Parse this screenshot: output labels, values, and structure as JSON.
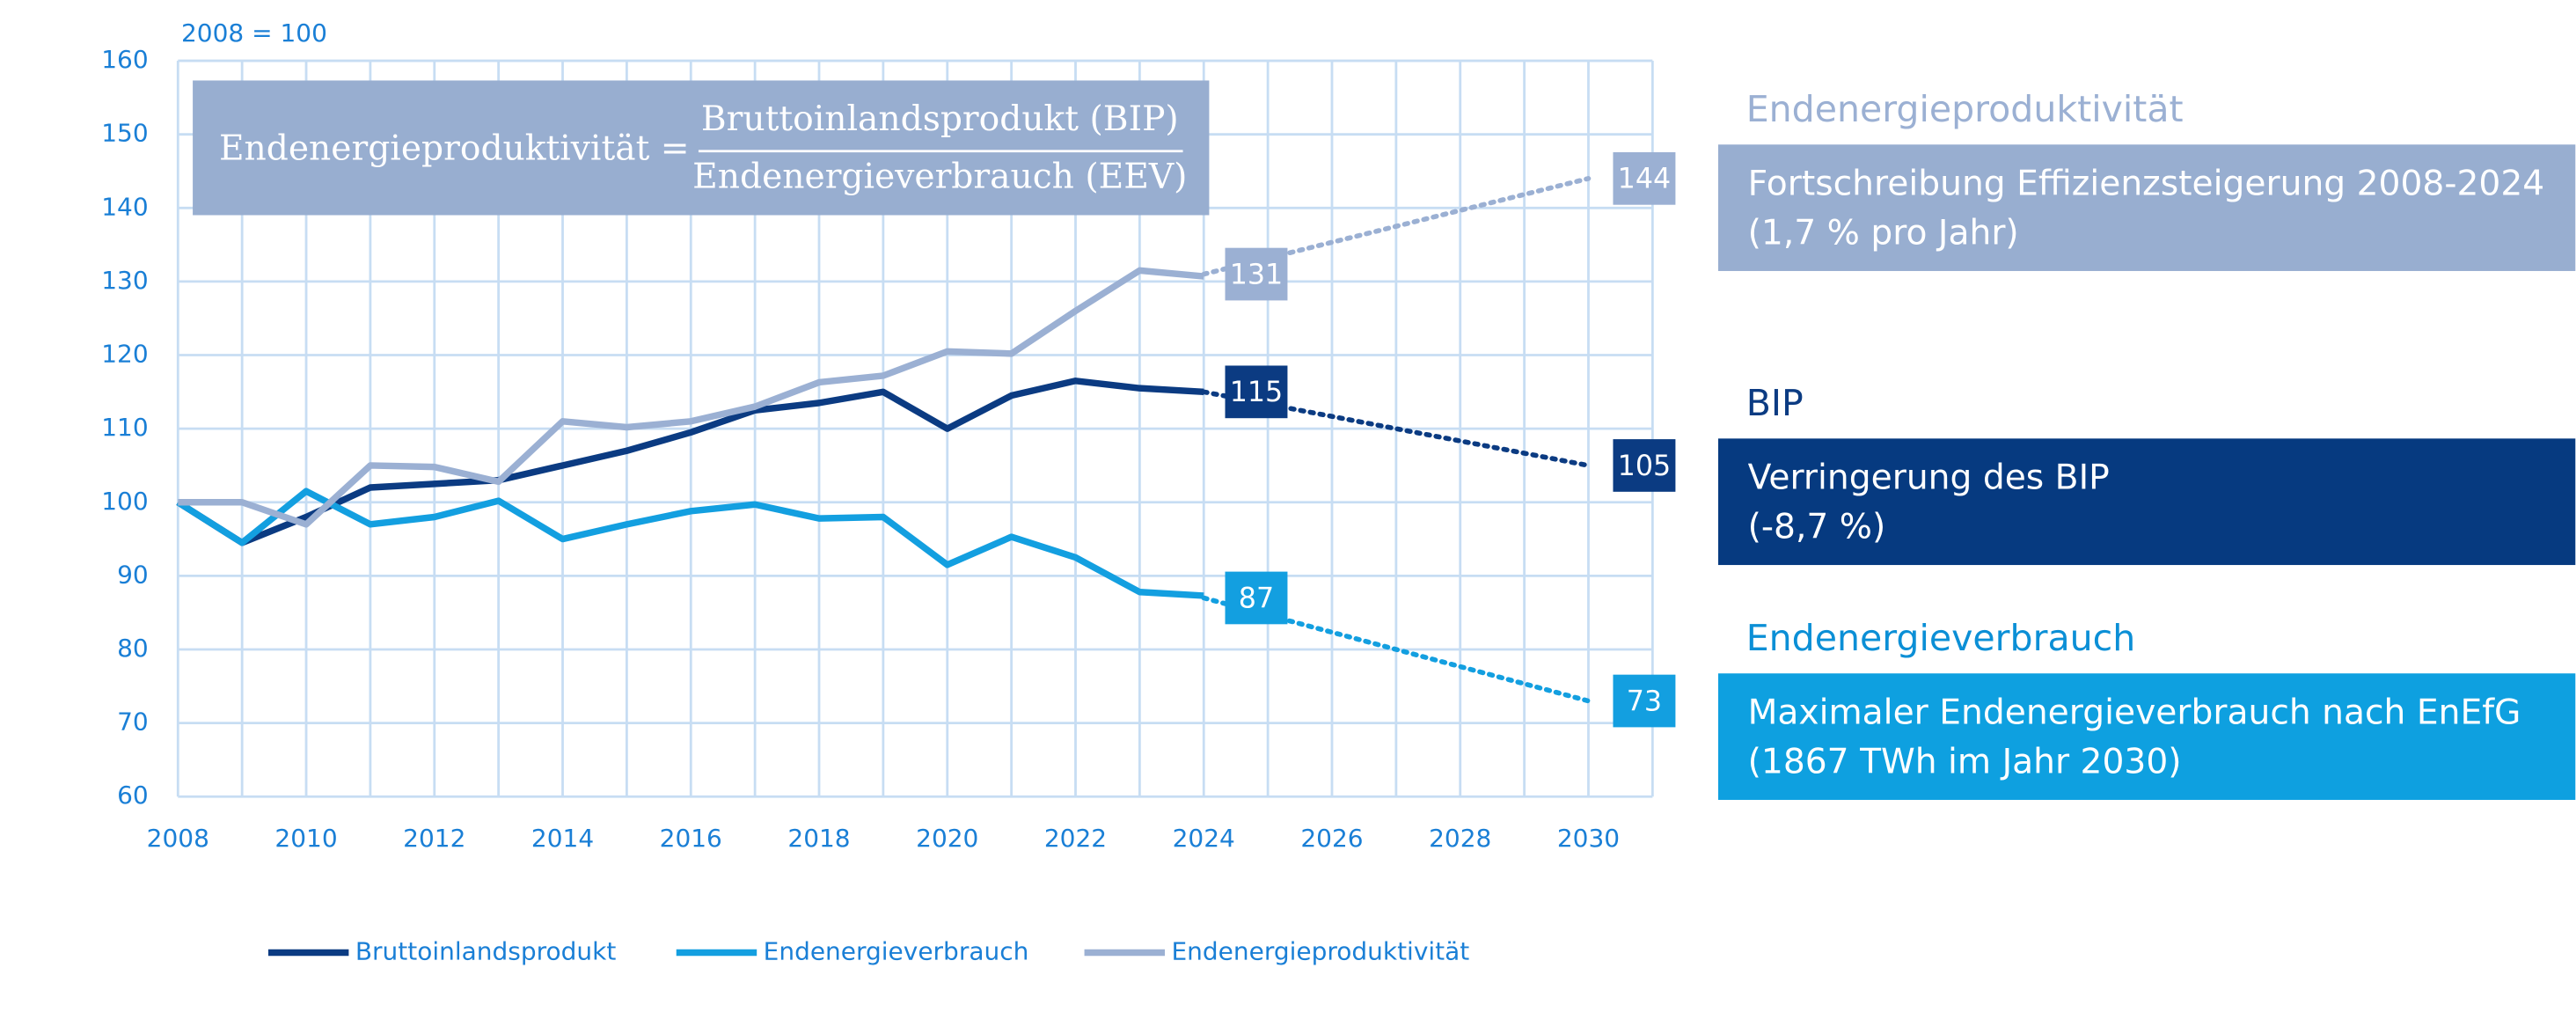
{
  "chart_data": {
    "type": "line",
    "ylabel": "2008 = 100",
    "formula": {
      "left": "Endenergieproduktivität =",
      "numerator": "Bruttoinlandsprodukt (BIP)",
      "denominator": "Endenergieverbrauch (EEV)"
    },
    "x": [
      2008,
      2009,
      2010,
      2011,
      2012,
      2013,
      2014,
      2015,
      2016,
      2017,
      2018,
      2019,
      2020,
      2021,
      2022,
      2023,
      2024
    ],
    "xlim": [
      2008,
      2031
    ],
    "ylim": [
      60,
      160
    ],
    "xticks": [
      2008,
      2010,
      2012,
      2014,
      2016,
      2018,
      2020,
      2022,
      2024,
      2026,
      2028,
      2030
    ],
    "xminorticks": [
      2009,
      2011,
      2013,
      2015,
      2017,
      2019,
      2021,
      2023,
      2025,
      2027,
      2029,
      2031
    ],
    "yticks": [
      60,
      70,
      80,
      90,
      100,
      110,
      120,
      130,
      140,
      150,
      160
    ],
    "grid": true,
    "legend": "bottom",
    "series": [
      {
        "name": "Bruttoinlandsprodukt",
        "color": "#0b3b82",
        "values": [
          100,
          94.5,
          98,
          102,
          102.5,
          103,
          105,
          107,
          109.5,
          112.5,
          113.5,
          115,
          110,
          114.5,
          116.5,
          115.5,
          115
        ]
      },
      {
        "name": "Endenergieverbrauch",
        "color": "#139fe0",
        "values": [
          100,
          94.5,
          101.5,
          97,
          98,
          100.2,
          95,
          97,
          98.8,
          99.7,
          97.8,
          98,
          91.5,
          95.3,
          92.5,
          87.8,
          87.3
        ]
      },
      {
        "name": "Endenergieproduktivität",
        "color": "#9bb0d3",
        "values": [
          100,
          100,
          97,
          105,
          104.8,
          102.8,
          111,
          110.2,
          111,
          113,
          116.3,
          117.2,
          120.5,
          120.2,
          126,
          131.5,
          130.7
        ]
      },
      {
        "color": "#0b3b82",
        "style": "dotted",
        "x": [
          2024,
          2030
        ],
        "values": [
          115,
          105
        ]
      },
      {
        "color": "#139fe0",
        "style": "dotted",
        "x": [
          2024,
          2030
        ],
        "values": [
          87,
          73
        ]
      },
      {
        "color": "#9bb0d3",
        "style": "dotted",
        "x": [
          2024,
          2030
        ],
        "values": [
          131,
          144
        ]
      }
    ],
    "annotations": [
      {
        "title": "Endenergieproduktivität",
        "title_color": "#9bb0d3",
        "color": "#98aed0",
        "lines": [
          "Fortschreibung Effizienzsteigerung 2008-2024",
          "(1,7 % pro Jahr)"
        ]
      },
      {
        "title": "BIP",
        "title_color": "#0b3b82",
        "color": "#063a80",
        "lines": [
          "Verringerung des BIP",
          "(-8,7 %)"
        ]
      },
      {
        "title": "Endenergieverbrauch",
        "title_color": "#0b8fd6",
        "color": "#0ea0e0",
        "lines": [
          "Maximaler Endenergieverbrauch nach EnEfG",
          "(1867 TWh im Jahr 2030)"
        ]
      }
    ]
  }
}
